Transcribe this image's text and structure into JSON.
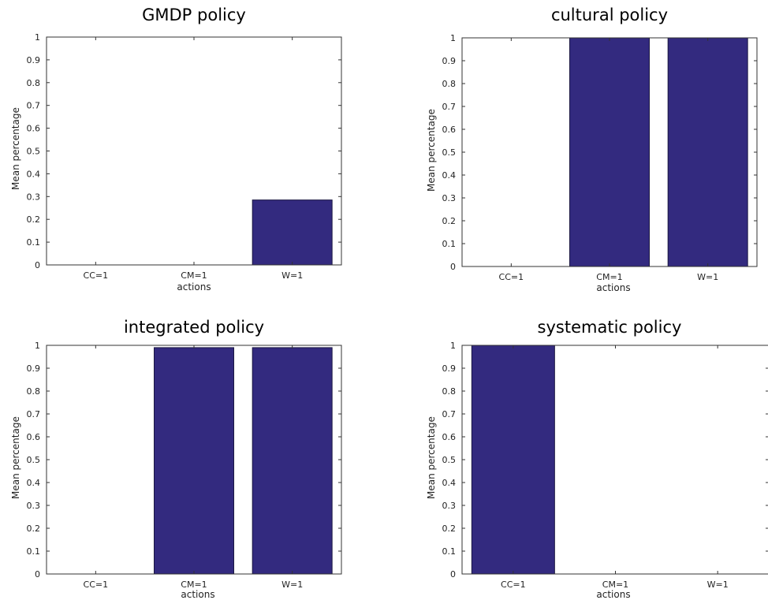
{
  "chart_data": [
    {
      "type": "bar",
      "title": "GMDP policy",
      "xlabel": "actions",
      "ylabel": "Mean percentage",
      "categories": [
        "CC=1",
        "CM=1",
        "W=1"
      ],
      "values": [
        0,
        0,
        0.285
      ],
      "ylim": [
        0,
        1
      ],
      "yticks": [
        "0",
        "0.1",
        "0.2",
        "0.3",
        "0.4",
        "0.5",
        "0.6",
        "0.7",
        "0.8",
        "0.9",
        "1"
      ],
      "bar_color": "#332a7f",
      "grid": false
    },
    {
      "type": "bar",
      "title": "cultural policy",
      "xlabel": "actions",
      "ylabel": "Mean percentage",
      "categories": [
        "CC=1",
        "CM=1",
        "W=1"
      ],
      "values": [
        0,
        1.0,
        1.0
      ],
      "ylim": [
        0,
        1
      ],
      "yticks": [
        "0",
        "0.1",
        "0.2",
        "0.3",
        "0.4",
        "0.5",
        "0.6",
        "0.7",
        "0.8",
        "0.9",
        "1"
      ],
      "bar_color": "#332a7f",
      "grid": false
    },
    {
      "type": "bar",
      "title": "integrated policy",
      "xlabel": "actions",
      "ylabel": "Mean percentage",
      "categories": [
        "CC=1",
        "CM=1",
        "W=1"
      ],
      "values": [
        0,
        0.99,
        0.99
      ],
      "ylim": [
        0,
        1
      ],
      "yticks": [
        "0",
        "0.1",
        "0.2",
        "0.3",
        "0.4",
        "0.5",
        "0.6",
        "0.7",
        "0.8",
        "0.9",
        "1"
      ],
      "bar_color": "#332a7f",
      "grid": false
    },
    {
      "type": "bar",
      "title": "systematic policy",
      "xlabel": "actions",
      "ylabel": "Mean percentage",
      "categories": [
        "CC=1",
        "CM=1",
        "W=1"
      ],
      "values": [
        1.0,
        0,
        0
      ],
      "ylim": [
        0,
        1
      ],
      "yticks": [
        "0",
        "0.1",
        "0.2",
        "0.3",
        "0.4",
        "0.5",
        "0.6",
        "0.7",
        "0.8",
        "0.9",
        "1"
      ],
      "bar_color": "#332a7f",
      "grid": false
    }
  ]
}
